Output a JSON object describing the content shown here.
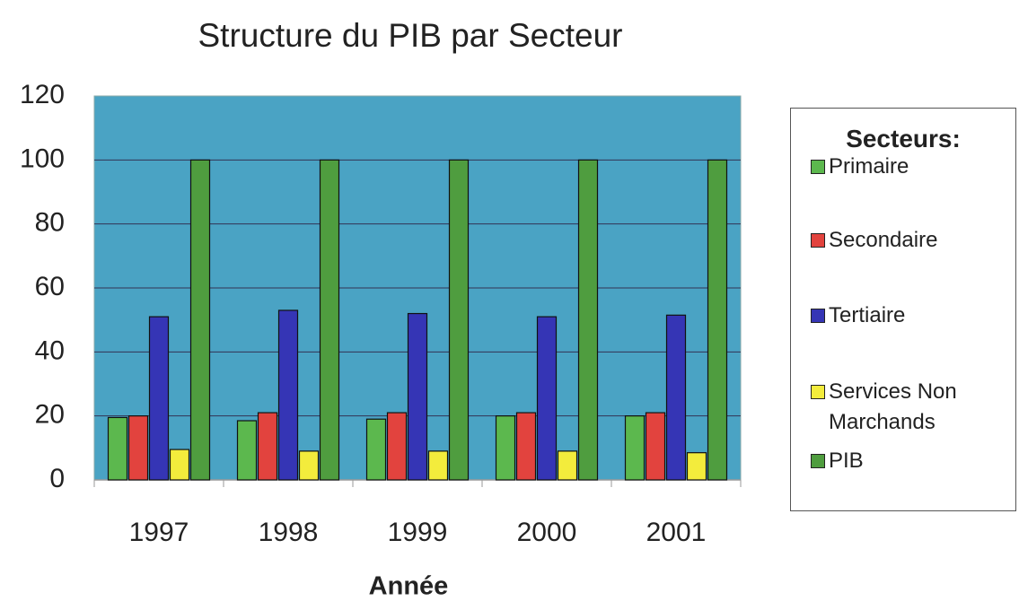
{
  "chart_data": {
    "type": "bar",
    "title": "Structure du PIB par Secteur",
    "x_label": "Année",
    "legend_title": "Secteurs:",
    "legend_position": "right",
    "categories": [
      "1997",
      "1998",
      "1999",
      "2000",
      "2001"
    ],
    "series": [
      {
        "name": "Primaire",
        "color": "#5cb84e",
        "values": [
          19.5,
          18.5,
          19,
          20,
          20
        ]
      },
      {
        "name": "Secondaire",
        "color": "#e2433e",
        "values": [
          20,
          21,
          21,
          21,
          21
        ]
      },
      {
        "name": "Tertiaire",
        "color": "#3535b5",
        "values": [
          51,
          53,
          52,
          51,
          51.5
        ]
      },
      {
        "name": "Services Non Marchands",
        "color": "#f3ec3c",
        "values": [
          9.5,
          9,
          9,
          9,
          8.5
        ]
      },
      {
        "name": "PIB",
        "color": "#4f9d3f",
        "values": [
          100,
          100,
          100,
          100,
          100
        ]
      }
    ],
    "ylim": [
      0,
      120
    ],
    "yticks": [
      0,
      20,
      40,
      60,
      80,
      100,
      120
    ],
    "grid": true,
    "plot_background": "#4aa3c4"
  }
}
